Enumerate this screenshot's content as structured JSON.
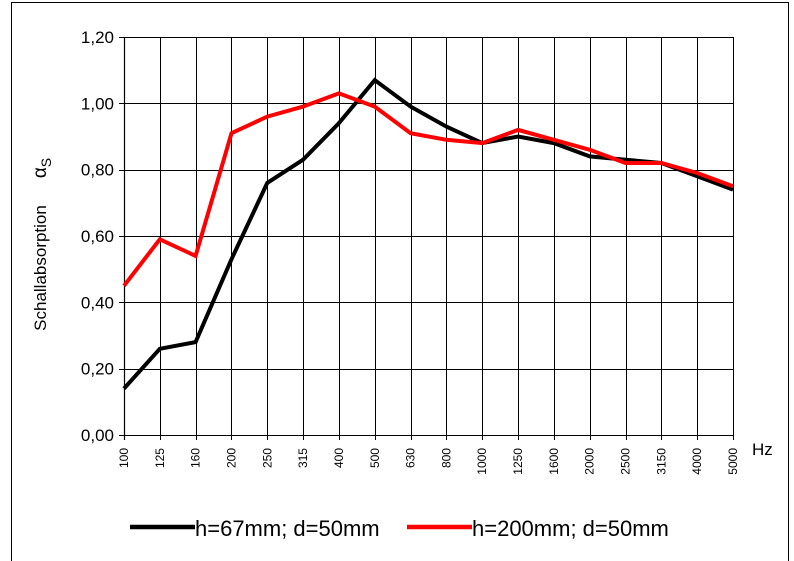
{
  "chart_data": {
    "type": "line",
    "title": "",
    "xlabel": "Hz",
    "ylabel": "Schallabsorption",
    "ylabel_symbol": "α",
    "ylabel_symbol_sub": "S",
    "categories": [
      "100",
      "125",
      "160",
      "200",
      "250",
      "315",
      "400",
      "500",
      "630",
      "800",
      "1000",
      "1250",
      "1600",
      "2000",
      "2500",
      "3150",
      "4000",
      "5000"
    ],
    "ylim": [
      0,
      1.2
    ],
    "yticks": [
      "0,00",
      "0,20",
      "0,40",
      "0,60",
      "0,80",
      "1,00",
      "1,20"
    ],
    "ytick_values": [
      0,
      0.2,
      0.4,
      0.6,
      0.8,
      1.0,
      1.2
    ],
    "grid": true,
    "legend_position": "bottom",
    "series": [
      {
        "name": "h=67mm; d=50mm",
        "color": "#000000",
        "values": [
          0.14,
          0.26,
          0.28,
          0.53,
          0.76,
          0.83,
          0.94,
          1.07,
          0.99,
          0.93,
          0.88,
          0.9,
          0.88,
          0.84,
          0.83,
          0.82,
          0.78,
          0.74
        ]
      },
      {
        "name": "h=200mm; d=50mm",
        "color": "#ff0000",
        "values": [
          0.45,
          0.59,
          0.54,
          0.91,
          0.96,
          0.99,
          1.03,
          0.99,
          0.91,
          0.89,
          0.88,
          0.92,
          0.89,
          0.86,
          0.82,
          0.82,
          0.79,
          0.75
        ]
      }
    ]
  }
}
